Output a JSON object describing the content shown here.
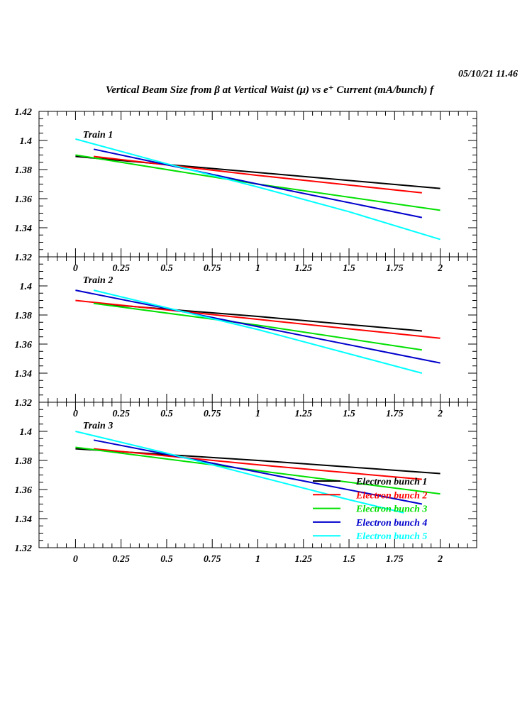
{
  "header": {
    "timestamp": "05/10/21   11.46",
    "title": "Vertical Beam Size from β at Vertical Waist (μ) vs e⁺ Current (mA/bunch) f"
  },
  "chart_data": {
    "type": "line",
    "title": "Vertical Beam Size from β at Vertical Waist (μ) vs e⁺ Current (mA/bunch) f",
    "xlabel": "e+ Current (mA/bunch)",
    "ylabel": "Vertical Beam Size (μ)",
    "xlim": [
      -0.2,
      2.2
    ],
    "ylim": [
      1.32,
      1.42
    ],
    "x_ticks": [
      "0",
      "0.25",
      "0.5",
      "0.75",
      "1",
      "1.25",
      "1.5",
      "1.75",
      "2"
    ],
    "y_ticks": [
      "1.32",
      "1.34",
      "1.36",
      "1.38",
      "1.4",
      "1.42"
    ],
    "grid": false,
    "legend": {
      "placement": "bottom-right",
      "panel": 3
    },
    "series_colors": [
      "#000000",
      "#ff0000",
      "#00e000",
      "#0000cc",
      "#00ffff"
    ],
    "series_names": [
      "Electron bunch 1",
      "Electron bunch 2",
      "Electron bunch 3",
      "Electron bunch 4",
      "Electron bunch 5"
    ],
    "panels": [
      {
        "label": "Train 1",
        "series": [
          {
            "name": "Electron bunch 1",
            "x": [
              0,
              1,
              2
            ],
            "y": [
              1.389,
              1.378,
              1.367
            ]
          },
          {
            "name": "Electron bunch 2",
            "x": [
              0.1,
              1,
              1.9
            ],
            "y": [
              1.389,
              1.376,
              1.364
            ]
          },
          {
            "name": "Electron bunch 3",
            "x": [
              0,
              1,
              2
            ],
            "y": [
              1.39,
              1.37,
              1.352
            ]
          },
          {
            "name": "Electron bunch 4",
            "x": [
              0.1,
              1,
              1.9
            ],
            "y": [
              1.394,
              1.37,
              1.347
            ]
          },
          {
            "name": "Electron bunch 5",
            "x": [
              0,
              0.5,
              1,
              1.5,
              2
            ],
            "y": [
              1.401,
              1.384,
              1.368,
              1.351,
              1.332
            ]
          }
        ]
      },
      {
        "label": "Train 2",
        "series": [
          {
            "name": "Electron bunch 1",
            "x": [
              0.1,
              1,
              1.9
            ],
            "y": [
              1.388,
              1.379,
              1.369
            ]
          },
          {
            "name": "Electron bunch 2",
            "x": [
              0,
              1,
              2
            ],
            "y": [
              1.39,
              1.377,
              1.364
            ]
          },
          {
            "name": "Electron bunch 3",
            "x": [
              0.1,
              1,
              1.9
            ],
            "y": [
              1.388,
              1.373,
              1.356
            ]
          },
          {
            "name": "Electron bunch 4",
            "x": [
              0,
              1,
              2
            ],
            "y": [
              1.397,
              1.372,
              1.347
            ]
          },
          {
            "name": "Electron bunch 5",
            "x": [
              0.1,
              1,
              1.9
            ],
            "y": [
              1.397,
              1.37,
              1.34
            ]
          }
        ]
      },
      {
        "label": "Train 3",
        "series": [
          {
            "name": "Electron bunch 1",
            "x": [
              0,
              1,
              2
            ],
            "y": [
              1.388,
              1.38,
              1.371
            ]
          },
          {
            "name": "Electron bunch 2",
            "x": [
              0.1,
              1,
              1.9
            ],
            "y": [
              1.388,
              1.377,
              1.367
            ]
          },
          {
            "name": "Electron bunch 3",
            "x": [
              0,
              1,
              2
            ],
            "y": [
              1.389,
              1.373,
              1.357
            ]
          },
          {
            "name": "Electron bunch 4",
            "x": [
              0.1,
              1,
              1.9
            ],
            "y": [
              1.394,
              1.372,
              1.35
            ]
          },
          {
            "name": "Electron bunch 5",
            "x": [
              0,
              0.5,
              1,
              1.5,
              1.8
            ],
            "y": [
              1.4,
              1.385,
              1.369,
              1.353,
              1.344
            ]
          }
        ]
      }
    ]
  }
}
